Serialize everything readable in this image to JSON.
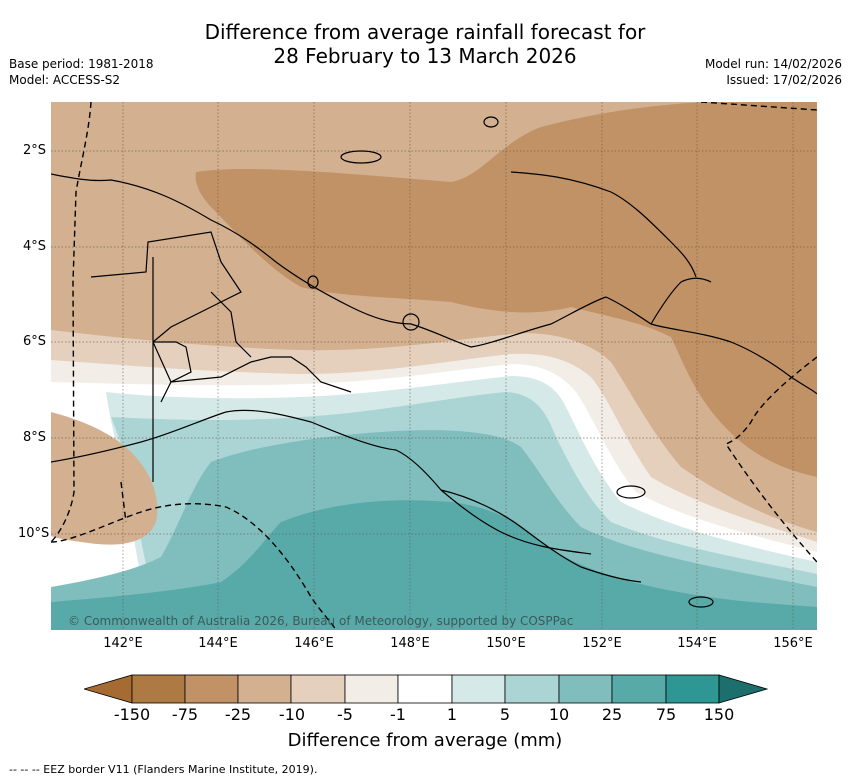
{
  "header": {
    "title_line1": "Difference from average rainfall forecast for",
    "title_line2": "28 February to 13 March 2026",
    "base_period": "Base period: 1981-2018",
    "model": "Model: ACCESS-S2",
    "model_run": "Model run: 14/02/2026",
    "issued": "Issued: 17/02/2026"
  },
  "map": {
    "copyright": "© Commonwealth of Australia 2026, Bureau of Meteorology, supported by COSPPac",
    "lat_ticks": [
      "2°S",
      "4°S",
      "6°S",
      "8°S",
      "10°S"
    ],
    "lon_ticks": [
      "142°E",
      "144°E",
      "146°E",
      "148°E",
      "150°E",
      "152°E",
      "154°E",
      "156°E"
    ],
    "colors": {
      "dry_150": "#a66b32",
      "dry_75": "#c09266",
      "dry_25": "#d2b090",
      "dry_10": "#e5d0bd",
      "dry_5": "#f2ede6",
      "neutral": "#ffffff",
      "wet_1": "#d5e9e8",
      "wet_5": "#abd5d4",
      "wet_10": "#80bebd",
      "wet_25": "#58aaa9",
      "wet_75": "#2f9793",
      "wet_150": "#1d6f6d"
    }
  },
  "colorbar": {
    "labels": [
      "-150",
      "-75",
      "-25",
      "-10",
      "-5",
      "-1",
      "1",
      "5",
      "10",
      "25",
      "75",
      "150"
    ],
    "title": "Difference from average (mm)"
  },
  "footer": {
    "legend": "--  --  -- EEZ border V11 (Flanders Marine Institute, 2019)."
  }
}
